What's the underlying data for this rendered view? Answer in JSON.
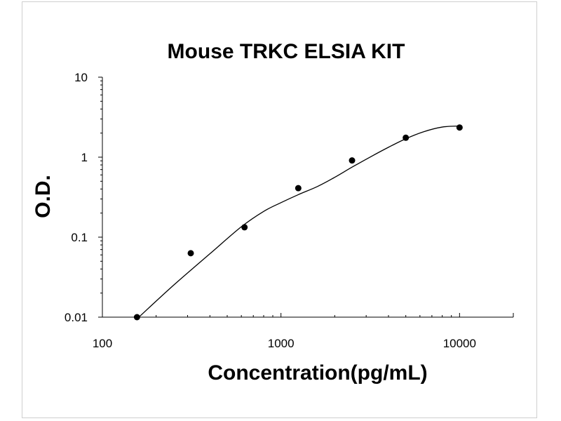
{
  "chart_data": {
    "type": "scatter",
    "title": "Mouse TRKC ELSIA KIT",
    "xlabel": "Concentration(pg/mL)",
    "ylabel": "O.D.",
    "xscale": "log",
    "yscale": "log",
    "xlim": [
      100,
      20000
    ],
    "ylim": [
      0.01,
      10
    ],
    "xticks": [
      {
        "value": 100,
        "label": "100"
      },
      {
        "value": 1000,
        "label": "1000"
      },
      {
        "value": 10000,
        "label": "10000"
      }
    ],
    "yticks": [
      {
        "value": 0.01,
        "label": "0.01"
      },
      {
        "value": 0.1,
        "label": "0.1"
      },
      {
        "value": 1,
        "label": "1"
      },
      {
        "value": 10,
        "label": "10"
      }
    ],
    "grid": false,
    "legend": "none",
    "series": [
      {
        "x": [
          156.25,
          312.5,
          625,
          1250,
          2500,
          5000,
          10000
        ],
        "y": [
          0.01,
          0.063,
          0.133,
          0.41,
          0.91,
          1.75,
          2.35
        ]
      }
    ],
    "fit_curve": {
      "x": [
        160,
        250,
        400,
        600,
        800,
        1000,
        1250,
        1600,
        2000,
        2500,
        3200,
        4000,
        5000,
        6300,
        8000,
        10000
      ],
      "y": [
        0.01,
        0.025,
        0.062,
        0.135,
        0.21,
        0.27,
        0.34,
        0.43,
        0.56,
        0.75,
        1.02,
        1.33,
        1.7,
        2.08,
        2.38,
        2.45
      ]
    },
    "colors": {
      "marker": "#000000",
      "line": "#000000",
      "axis": "#000000"
    }
  }
}
